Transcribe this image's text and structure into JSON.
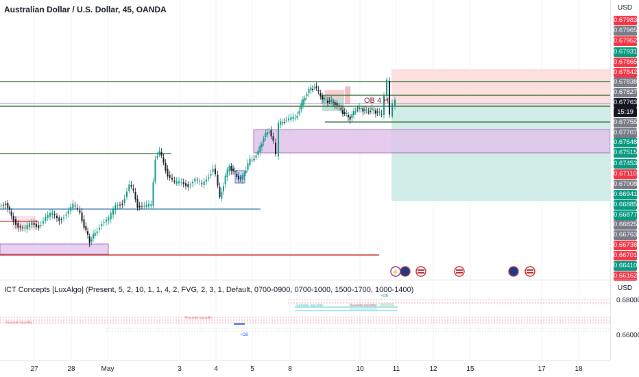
{
  "chart": {
    "title": "Australian Dollar / U.S. Dollar, 45, OANDA",
    "currency": "USD",
    "ob_label": "OB 4 H",
    "price_tags": [
      {
        "value": "0.67983",
        "color": "red"
      },
      {
        "value": "0.67965",
        "color": "gray"
      },
      {
        "value": "0.67952",
        "color": "red"
      },
      {
        "value": "0.67931",
        "color": "green"
      },
      {
        "value": "0.67865",
        "color": "red"
      },
      {
        "value": "0.67842",
        "color": "red"
      },
      {
        "value": "0.67838",
        "color": "gray"
      },
      {
        "value": "0.67827",
        "color": "gray"
      },
      {
        "value": "0.67763",
        "color": "black"
      },
      {
        "value": "15:19",
        "color": "black"
      },
      {
        "value": "0.67755",
        "color": "gray"
      },
      {
        "value": "0.67707",
        "color": "gray"
      },
      {
        "value": "0.67648",
        "color": "green"
      },
      {
        "value": "0.67515",
        "color": "green"
      },
      {
        "value": "0.67453",
        "color": "green"
      },
      {
        "value": "0.67110",
        "color": "red"
      },
      {
        "value": "0.67008",
        "color": "gray"
      },
      {
        "value": "0.66941",
        "color": "green"
      },
      {
        "value": "0.66885",
        "color": "green"
      },
      {
        "value": "0.66877",
        "color": "green"
      },
      {
        "value": "0.66825",
        "color": "gray"
      },
      {
        "value": "0.66763",
        "color": "gray"
      },
      {
        "value": "0.66738",
        "color": "red"
      },
      {
        "value": "0.66701",
        "color": "red"
      },
      {
        "value": "0.66410",
        "color": "green"
      },
      {
        "value": "0.66162",
        "color": "red"
      }
    ]
  },
  "indicator": {
    "title": "ICT Concepts [LuxAlgo] (Present, 5, 2, 10, 1, 1, 4, 2, FVG, 2, 3, 1, Default, 0700-0900, 0700-1000, 1500-1700, 1000-1400)",
    "currency": "USD",
    "axis_labels": [
      "0.68000",
      "0.66000"
    ],
    "buyside_label": "Buyside liquidity",
    "sellside_label": "Sellside liquidity",
    "buyside_label_2": "Buyside liquidity",
    "ob_label": "+OB",
    "ob_label_top": "+OB"
  },
  "time_axis": {
    "ticks": [
      "27",
      "28",
      "May",
      "3",
      "4",
      "5",
      "8",
      "10",
      "11",
      "12",
      "15",
      "17",
      "18"
    ]
  },
  "colors": {
    "up": "#089981",
    "down": "#131722",
    "green_line": "#1b5e20",
    "blue_line": "#2962ff",
    "red_line": "#c62828",
    "purple_zone": "#ce93d8",
    "tp_zone": "#b2dfdb",
    "sl_zone": "#fcdcdc"
  }
}
